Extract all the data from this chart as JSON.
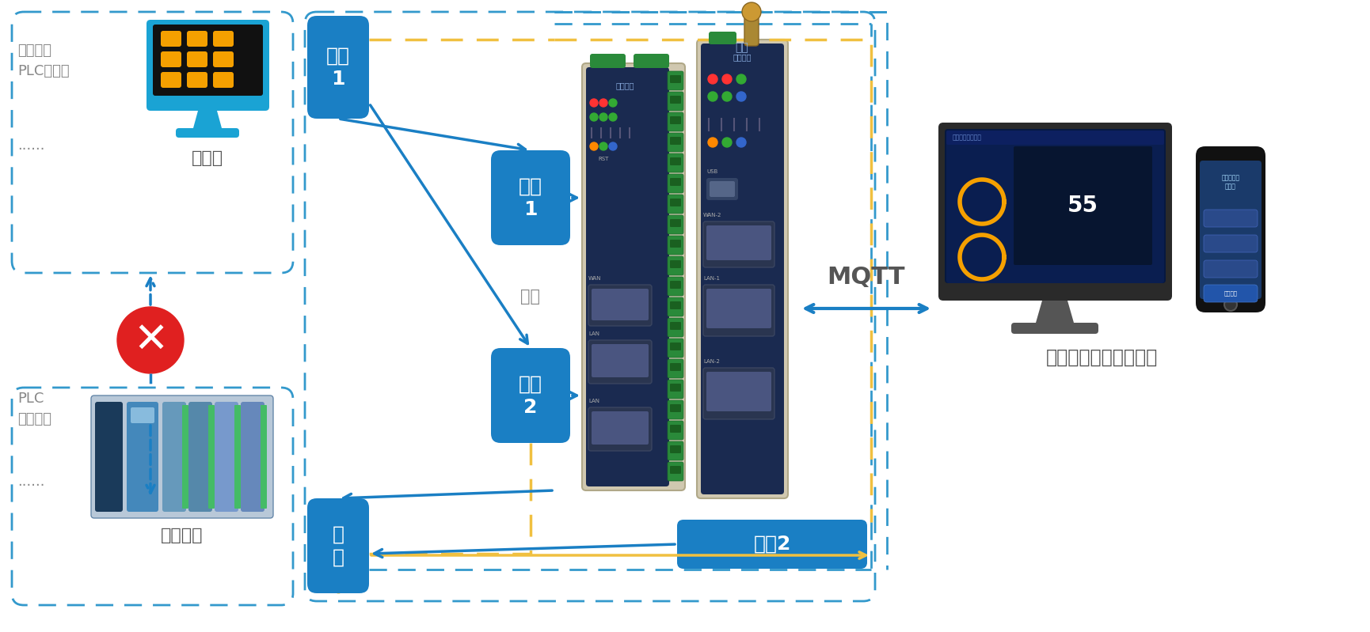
{
  "bg_color": "#ffffff",
  "dashed_blue": "#3399cc",
  "dashed_yellow": "#f0c040",
  "box_blue": "#1a7fc4",
  "monitor_color": "#1aa3d4",
  "arrow_blue": "#1a7fc4",
  "red_x": "#e02020",
  "text_gray": "#888888",
  "text_dark": "#555555",
  "label_zhuazhan1": "主站\n1",
  "label_zhuazhan2": "主站2",
  "label_chuankou1": "串口\n1",
  "label_chuankou2": "串口\n2",
  "label_cong": "从\n站",
  "label_shangweiji": "上位机",
  "label_gongye": "工业设备",
  "label_mqtt": "MQTT",
  "label_cloud": "工业云平台及远程软件",
  "label_zhuanfa": "转发",
  "label_zuotai": "组态软件\nPLC控制器",
  "label_plc": "PLC\n仪器仪表",
  "label_dots": "......",
  "figsize": [
    17.31,
    7.99
  ],
  "dpi": 100
}
